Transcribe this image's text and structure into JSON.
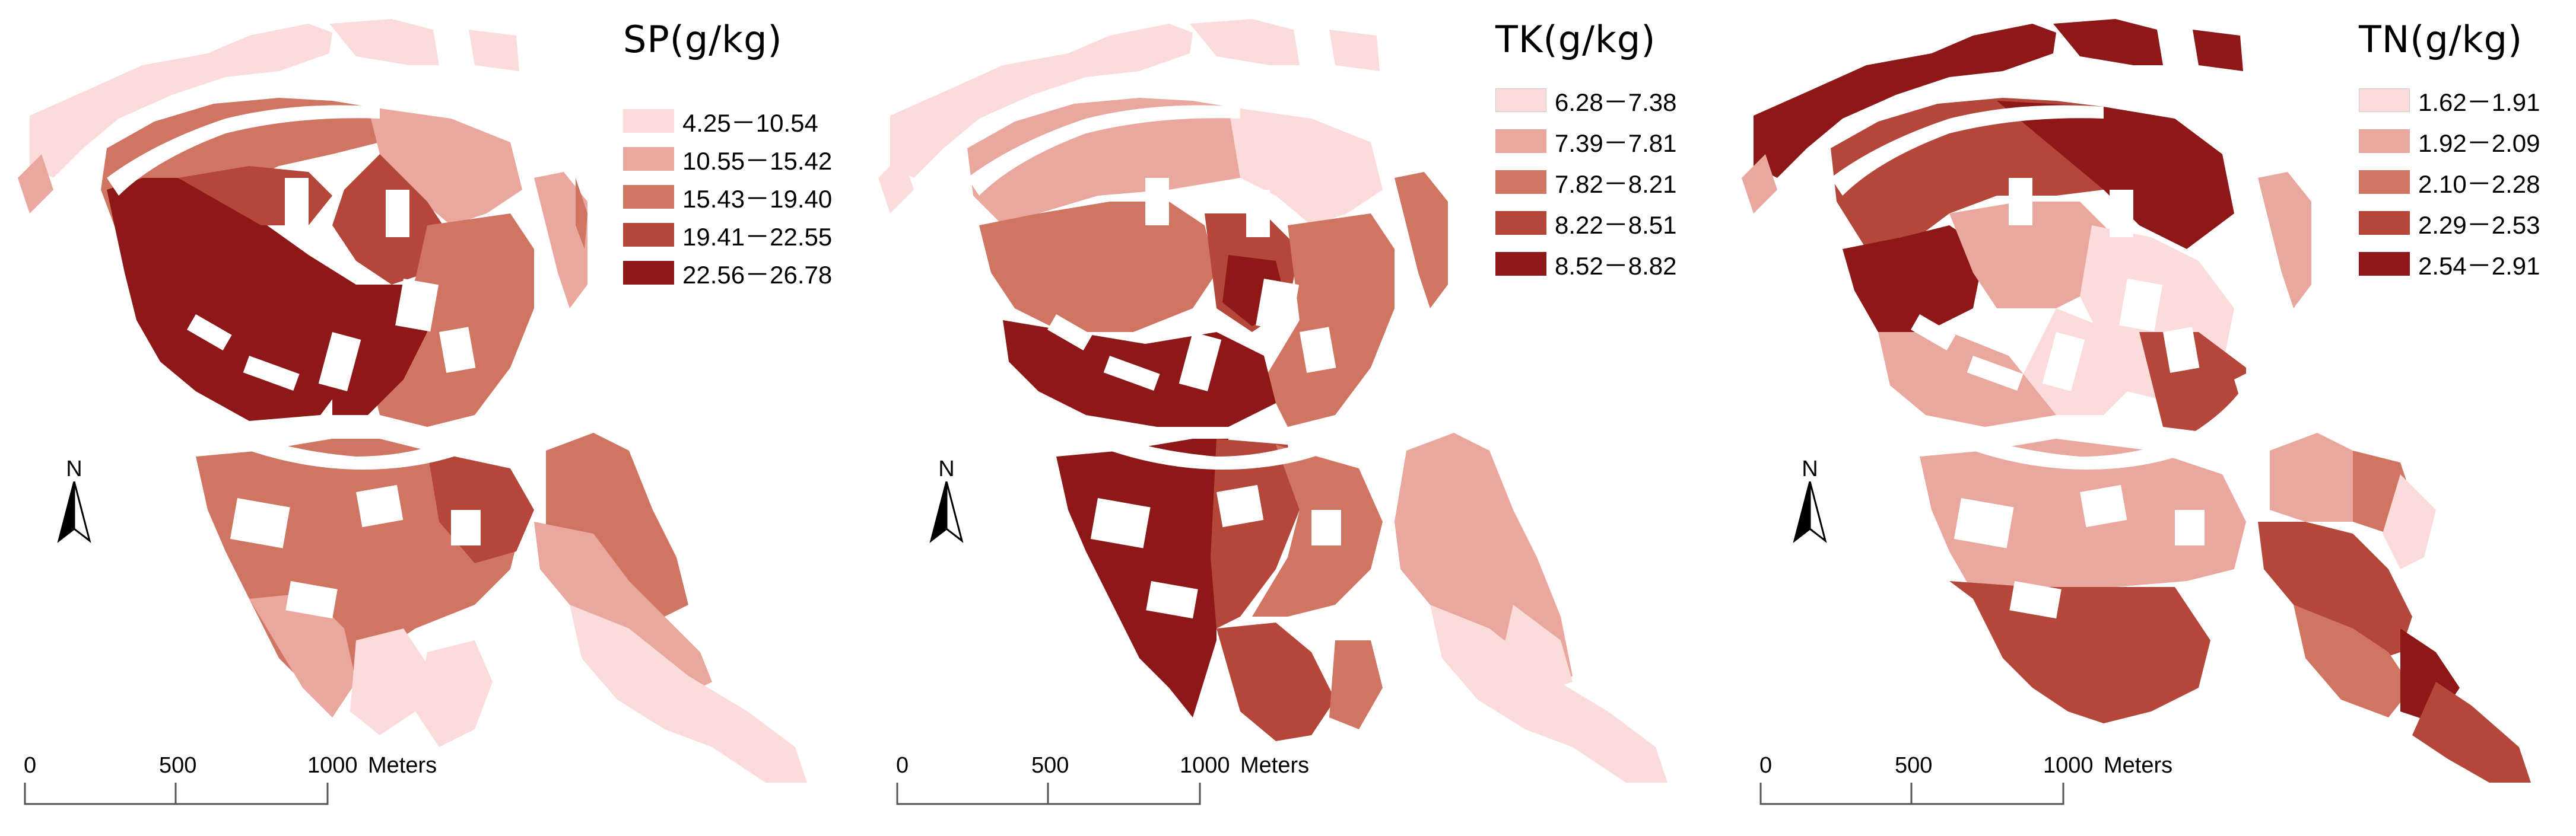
{
  "panels": [
    {
      "title": "SP(g/kg)",
      "classes": [
        {
          "label": "4.25－10.54",
          "color": "#fcdcda"
        },
        {
          "label": "10.55－15.42",
          "color": "#e9a79e"
        },
        {
          "label": "15.43－19.40",
          "color": "#d17563"
        },
        {
          "label": "19.41－22.55",
          "color": "#b4473a"
        },
        {
          "label": "22.56－26.78",
          "color": "#8e1818"
        }
      ]
    },
    {
      "title": "TK(g/kg)",
      "classes": [
        {
          "label": "6.28－7.38",
          "color": "#fcdcda"
        },
        {
          "label": "7.39－7.81",
          "color": "#e9a79e"
        },
        {
          "label": "7.82－8.21",
          "color": "#d17563"
        },
        {
          "label": "8.22－8.51",
          "color": "#b4473a"
        },
        {
          "label": "8.52－8.82",
          "color": "#8e1818"
        }
      ]
    },
    {
      "title": "TN(g/kg)",
      "classes": [
        {
          "label": "1.62－1.91",
          "color": "#fcdcda"
        },
        {
          "label": "1.92－2.09",
          "color": "#e9a79e"
        },
        {
          "label": "2.10－2.28",
          "color": "#d17563"
        },
        {
          "label": "2.29－2.53",
          "color": "#b4473a"
        },
        {
          "label": "2.54－2.91",
          "color": "#8e1818"
        }
      ]
    }
  ],
  "north_label": "N",
  "scale": {
    "ticks": [
      "0",
      "500",
      "1000"
    ],
    "unit": "Meters"
  }
}
